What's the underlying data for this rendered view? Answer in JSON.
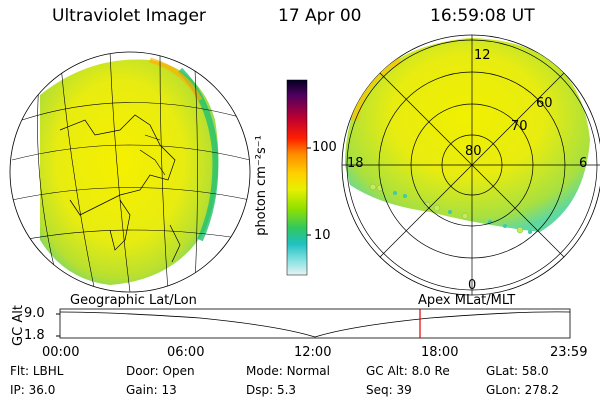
{
  "header": {
    "title": "Ultraviolet Imager",
    "date": "17 Apr 00",
    "time": "16:59:08 UT"
  },
  "colorbar": {
    "unit_label": "photon cm⁻²s⁻¹",
    "ticks": [
      "100",
      "10"
    ],
    "scale": "log"
  },
  "polar_plot": {
    "lat_labels": [
      "80",
      "70",
      "60"
    ],
    "mlt_labels": {
      "top": "12",
      "left": "18",
      "right": "6",
      "bottom": "0"
    }
  },
  "left_panel_label": "Geographic Lat/Lon",
  "right_panel_label": "Apex MLat/MLT",
  "altitude_plot": {
    "ylabel": "GC Alt",
    "y_ticks": [
      "9.0",
      "1.8"
    ],
    "x_ticks": [
      "00:00",
      "06:00",
      "12:00",
      "18:00",
      "23:59"
    ],
    "marker_time": "16:59"
  },
  "footer": {
    "row1": [
      {
        "k": "Flt:",
        "v": "LBHL"
      },
      {
        "k": "Door:",
        "v": "Open"
      },
      {
        "k": "Mode:",
        "v": "Normal"
      },
      {
        "k": "GC Alt:",
        "v": "8.0 Re"
      },
      {
        "k": "GLat:",
        "v": "58.0"
      }
    ],
    "row2": [
      {
        "k": "IP:",
        "v": "36.0"
      },
      {
        "k": "Gain:",
        "v": "13"
      },
      {
        "k": "Dsp:",
        "v": "5.3"
      },
      {
        "k": "Seq:",
        "v": "39"
      },
      {
        "k": "GLon:",
        "v": "278.2"
      }
    ]
  },
  "colors": {
    "high": "#ff8c00",
    "mid": "#f0f000",
    "low": "#30c860",
    "marker": "#e00000"
  }
}
